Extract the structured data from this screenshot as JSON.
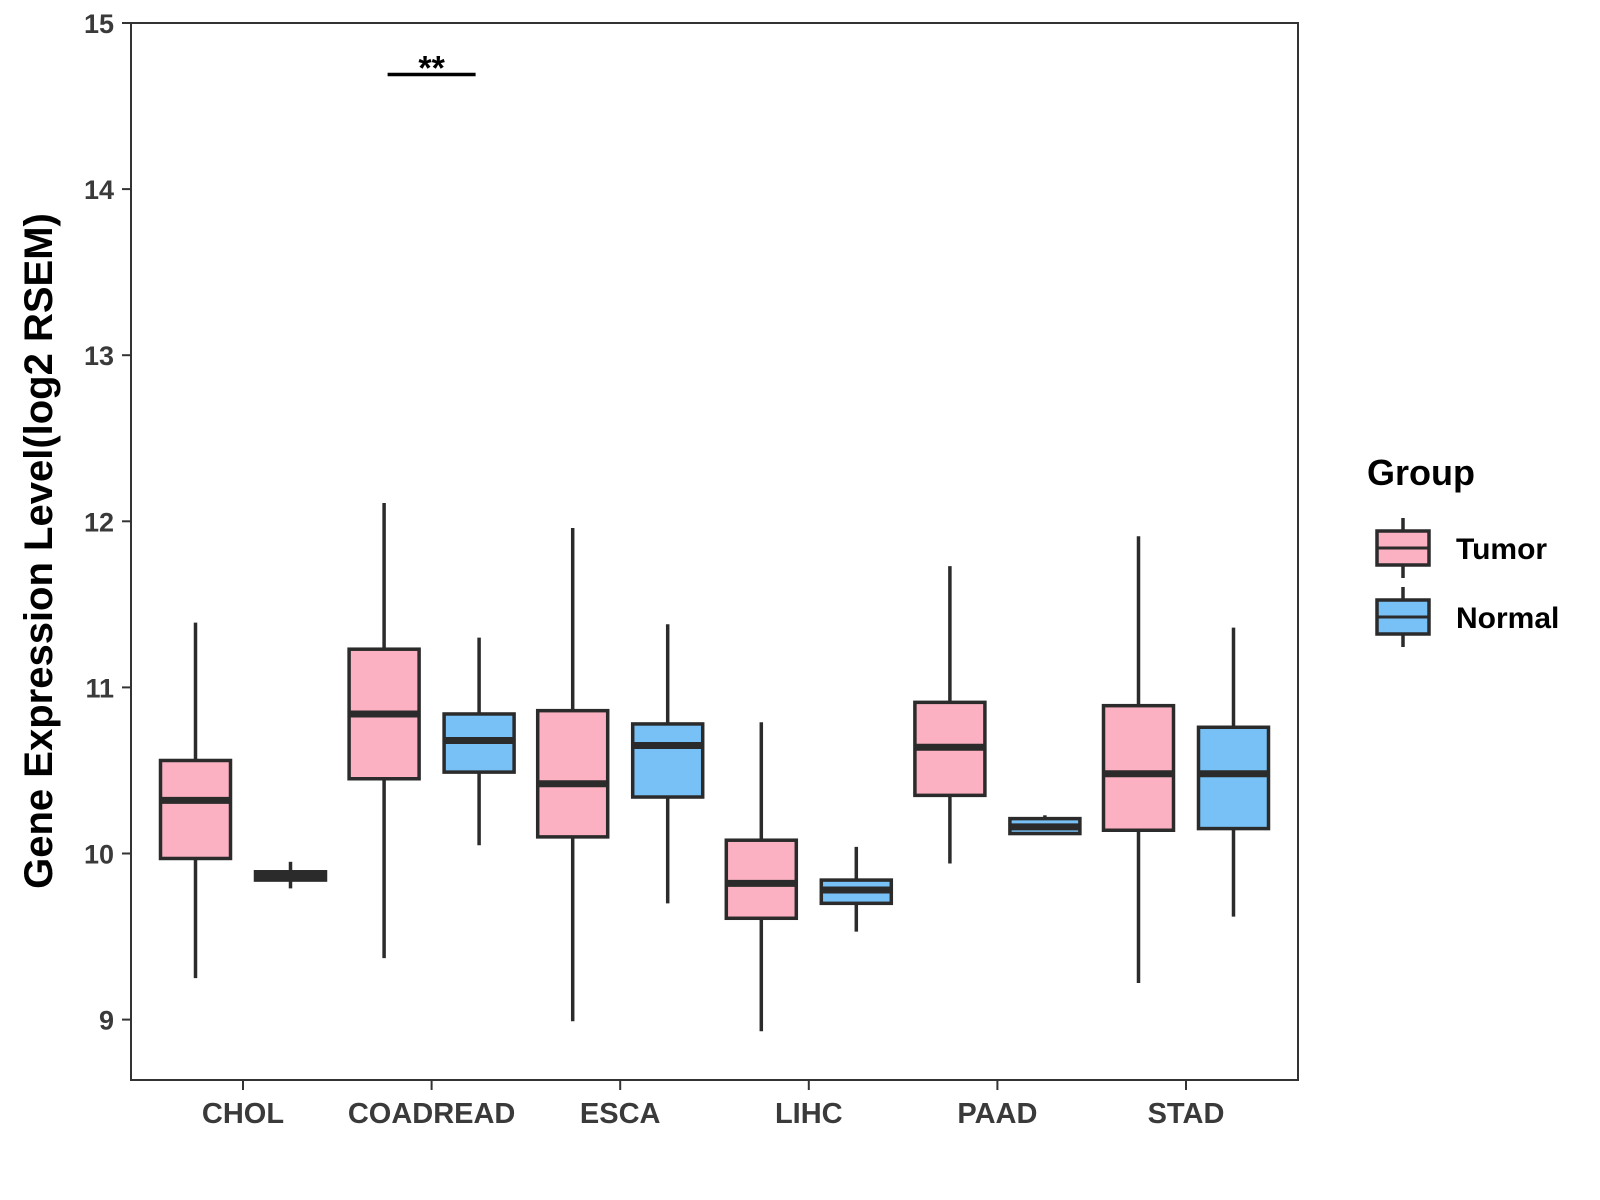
{
  "chart_data": {
    "type": "boxplot",
    "title": "",
    "xlabel": "",
    "ylabel": "Gene Expression Level(log2 RSEM)",
    "ylim": [
      8.65,
      15
    ],
    "yticks": [
      9,
      10,
      11,
      12,
      13,
      14,
      15
    ],
    "categories": [
      "CHOL",
      "COADREAD",
      "ESCA",
      "LIHC",
      "PAAD",
      "STAD"
    ],
    "legend": {
      "title": "Group",
      "position": "right"
    },
    "series": [
      {
        "name": "Tumor",
        "color": "#FBB1C2",
        "boxes": [
          {
            "category": "CHOL",
            "min": 9.25,
            "q1": 9.97,
            "median": 10.32,
            "q3": 10.56,
            "max": 11.39
          },
          {
            "category": "COADREAD",
            "min": 9.37,
            "q1": 10.45,
            "median": 10.84,
            "q3": 11.23,
            "max": 12.11
          },
          {
            "category": "ESCA",
            "min": 8.99,
            "q1": 10.1,
            "median": 10.42,
            "q3": 10.86,
            "max": 11.96
          },
          {
            "category": "LIHC",
            "min": 8.93,
            "q1": 9.61,
            "median": 9.82,
            "q3": 10.08,
            "max": 10.79
          },
          {
            "category": "PAAD",
            "min": 9.94,
            "q1": 10.35,
            "median": 10.64,
            "q3": 10.91,
            "max": 11.73
          },
          {
            "category": "STAD",
            "min": 9.22,
            "q1": 10.14,
            "median": 10.48,
            "q3": 10.89,
            "max": 11.91
          }
        ]
      },
      {
        "name": "Normal",
        "color": "#78C1F7",
        "boxes": [
          {
            "category": "CHOL",
            "min": 9.79,
            "q1": 9.84,
            "median": 9.86,
            "q3": 9.89,
            "max": 9.95
          },
          {
            "category": "COADREAD",
            "min": 10.05,
            "q1": 10.49,
            "median": 10.68,
            "q3": 10.84,
            "max": 11.3
          },
          {
            "category": "ESCA",
            "min": 9.7,
            "q1": 10.34,
            "median": 10.65,
            "q3": 10.78,
            "max": 11.38
          },
          {
            "category": "LIHC",
            "min": 9.53,
            "q1": 9.7,
            "median": 9.78,
            "q3": 9.84,
            "max": 10.04
          },
          {
            "category": "PAAD",
            "min": 10.12,
            "q1": 10.12,
            "median": 10.16,
            "q3": 10.21,
            "max": 10.23
          },
          {
            "category": "STAD",
            "min": 9.62,
            "q1": 10.15,
            "median": 10.48,
            "q3": 10.76,
            "max": 11.36
          }
        ]
      }
    ],
    "annotations": [
      {
        "category": "COADREAD",
        "text": "**",
        "y": 14.69
      }
    ]
  }
}
